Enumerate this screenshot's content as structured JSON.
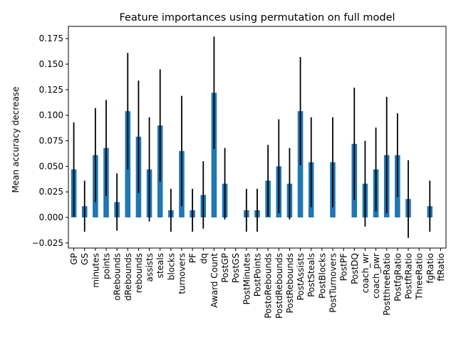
{
  "chart_data": {
    "type": "bar",
    "title": "Feature importances using permutation on full model",
    "xlabel": "",
    "ylabel": "Mean accuracy decrease",
    "ylim": [
      -0.03,
      0.187
    ],
    "yticks": [
      -0.025,
      0.0,
      0.025,
      0.05,
      0.075,
      0.1,
      0.125,
      0.15,
      0.175
    ],
    "ytick_labels": [
      "−0.025",
      "0.000",
      "0.025",
      "0.050",
      "0.075",
      "0.100",
      "0.125",
      "0.150",
      "0.175"
    ],
    "bar_color": "#1f77b4",
    "error_bar_color": "#000000",
    "grid": false,
    "categories": [
      "GP",
      "GS",
      "minutes",
      "points",
      "oRebounds",
      "dRebounds",
      "rebounds",
      "assists",
      "steals",
      "blocks",
      "turnovers",
      "PF",
      "dq",
      "Award Count",
      "PostGP",
      "PostGS",
      "PostMinutes",
      "PostPoints",
      "PostoRebounds",
      "PostdRebounds",
      "PostRebounds",
      "PostAssists",
      "PostSteals",
      "PostBlocks",
      "PostTurnovers",
      "PostPF",
      "PostDQ",
      "coach_wr",
      "coach_pwr",
      "PostthreeRatio",
      "PostfgRatio",
      "PostftRatio",
      "ThreeRatio",
      "fgRatio",
      "ftRatio"
    ],
    "values": [
      0.047,
      0.011,
      0.061,
      0.068,
      0.015,
      0.104,
      0.079,
      0.047,
      0.09,
      0.007,
      0.065,
      0.007,
      0.022,
      0.122,
      0.033,
      0.0,
      0.007,
      0.007,
      0.036,
      0.05,
      0.033,
      0.104,
      0.054,
      0.0,
      0.054,
      0.0,
      0.072,
      0.033,
      0.047,
      0.061,
      0.061,
      0.018,
      0.0,
      0.011,
      0.0
    ],
    "errors": [
      0.046,
      0.025,
      0.046,
      0.047,
      0.028,
      0.057,
      0.055,
      0.051,
      0.055,
      0.021,
      0.054,
      0.021,
      0.033,
      0.055,
      0.035,
      0.0,
      0.021,
      0.021,
      0.035,
      0.046,
      0.035,
      0.053,
      0.044,
      0.0,
      0.044,
      0.0,
      0.055,
      0.042,
      0.041,
      0.057,
      0.041,
      0.038,
      0.0,
      0.025,
      0.0
    ]
  }
}
